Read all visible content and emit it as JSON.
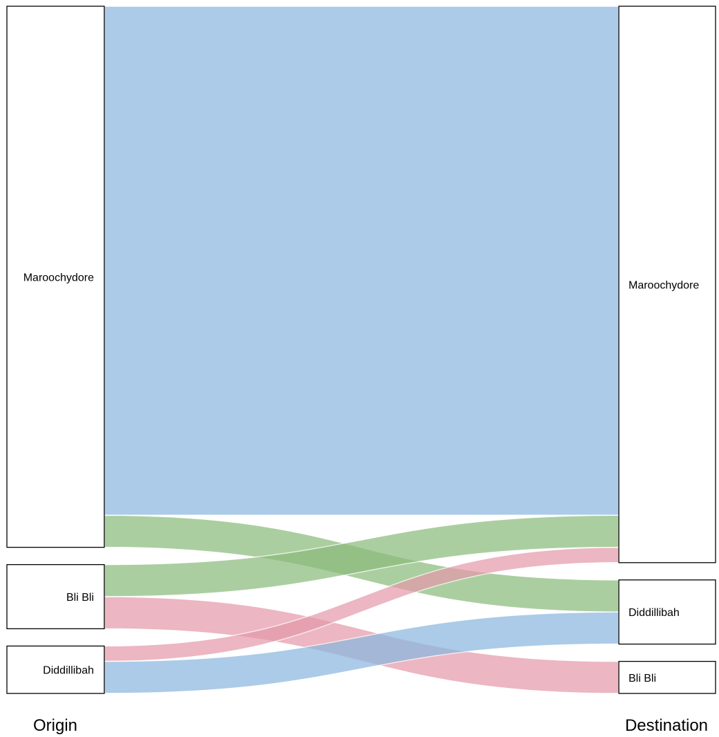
{
  "chart_data": {
    "type": "sankey",
    "axes": [
      "Origin",
      "Destination"
    ],
    "origin_nodes": [
      "Maroochydore",
      "Bli Bli",
      "Diddillibah"
    ],
    "destination_nodes": [
      "Maroochydore",
      "Diddillibah",
      "Bli Bli"
    ],
    "flows": [
      {
        "from": "Maroochydore",
        "to": "Maroochydore",
        "value": 730,
        "color": "#8bb8e0"
      },
      {
        "from": "Maroochydore",
        "to": "Diddillibah",
        "value": 46,
        "color": "#8cbc7c"
      },
      {
        "from": "Bli Bli",
        "to": "Maroochydore",
        "value": 46,
        "color": "#8cbc7c"
      },
      {
        "from": "Bli Bli",
        "to": "Bli Bli",
        "value": 46,
        "color": "#e59aab"
      },
      {
        "from": "Diddillibah",
        "to": "Maroochydore",
        "value": 22,
        "color": "#e59aab"
      },
      {
        "from": "Diddillibah",
        "to": "Diddillibah",
        "value": 46,
        "color": "#8bb8e0"
      }
    ]
  }
}
